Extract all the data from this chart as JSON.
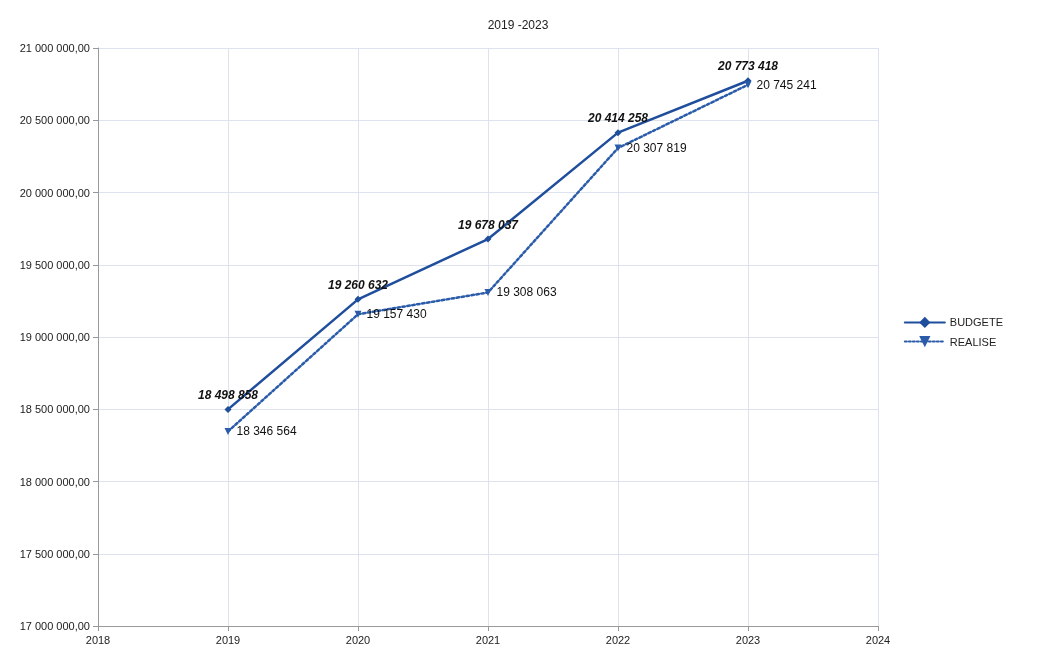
{
  "chart_data": {
    "type": "line",
    "title": "2019 -2023",
    "x": [
      2019,
      2020,
      2021,
      2022,
      2023
    ],
    "xlim": [
      2018,
      2024
    ],
    "xticks": [
      2018,
      2019,
      2020,
      2021,
      2022,
      2023,
      2024
    ],
    "ylim": [
      17000000,
      21000000
    ],
    "yticks": [
      {
        "value": 17000000,
        "label": "17 000 000,00"
      },
      {
        "value": 17500000,
        "label": "17 500 000,00"
      },
      {
        "value": 18000000,
        "label": "18 000 000,00"
      },
      {
        "value": 18500000,
        "label": "18 500 000,00"
      },
      {
        "value": 19000000,
        "label": "19 000 000,00"
      },
      {
        "value": 19500000,
        "label": "19 500 000,00"
      },
      {
        "value": 20000000,
        "label": "20 000 000,00"
      },
      {
        "value": 20500000,
        "label": "20 500 000,00"
      },
      {
        "value": 21000000,
        "label": "21 000 000,00"
      }
    ],
    "series": [
      {
        "name": "BUDGETE",
        "color": "#1f4e9c",
        "marker": "diamond",
        "line_style": "solid",
        "values": [
          18498858,
          19260632,
          19678037,
          20414258,
          20773418
        ],
        "value_labels": [
          "18 498 858",
          "19 260 632",
          "19 678 037",
          "20 414 258",
          "20 773 418"
        ]
      },
      {
        "name": "REALISE",
        "color": "#2a5caa",
        "marker": "triangle",
        "line_style": "dotted",
        "values": [
          18346564,
          19157430,
          19308063,
          20307819,
          20745241
        ],
        "value_labels": [
          "18 346 564",
          "19 157 430",
          "19 308 063",
          "20 307 819",
          "20 745 241"
        ]
      }
    ],
    "grid": true,
    "legend": "right"
  }
}
